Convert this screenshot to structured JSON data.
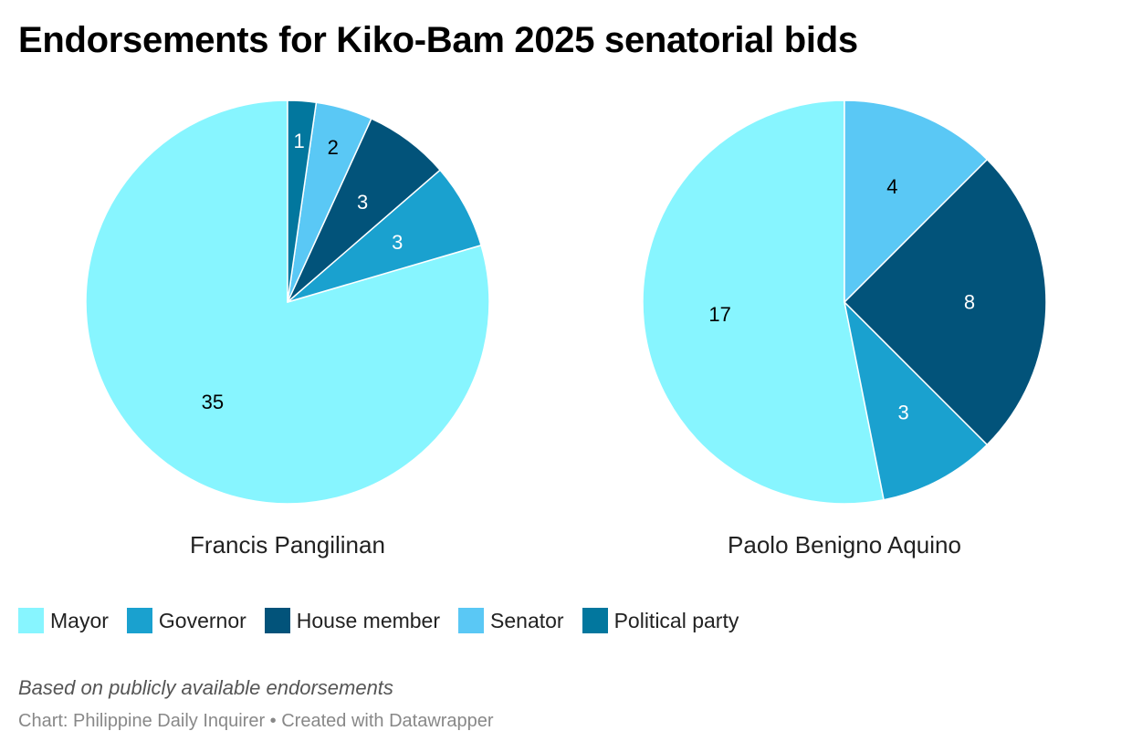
{
  "title": "Endorsements for Kiko-Bam 2025 senatorial bids",
  "categories": [
    "Mayor",
    "Governor",
    "House member",
    "Senator",
    "Political party"
  ],
  "colors": {
    "Mayor": "#87f5ff",
    "Governor": "#1aa1cf",
    "House member": "#02537a",
    "Senator": "#5ac8f5",
    "Political party": "#02779e"
  },
  "label_colors": {
    "Mayor": "#000000",
    "Governor": "#ffffff",
    "House member": "#ffffff",
    "Senator": "#000000",
    "Political party": "#ffffff"
  },
  "chart_data": [
    {
      "type": "pie",
      "caption": "Francis Pangilinan",
      "categories": [
        "Mayor",
        "Governor",
        "House member",
        "Senator",
        "Political party"
      ],
      "values": [
        35,
        3,
        3,
        2,
        1
      ]
    },
    {
      "type": "pie",
      "caption": "Paolo Benigno Aquino",
      "categories": [
        "Mayor",
        "Governor",
        "House member",
        "Senator"
      ],
      "values": [
        17,
        3,
        8,
        4
      ]
    }
  ],
  "legend": [
    {
      "label": "Mayor"
    },
    {
      "label": "Governor"
    },
    {
      "label": "House member"
    },
    {
      "label": "Senator"
    },
    {
      "label": "Political party"
    }
  ],
  "note": "Based on publicly available endorsements",
  "source": "Chart: Philippine Daily Inquirer • Created with Datawrapper"
}
